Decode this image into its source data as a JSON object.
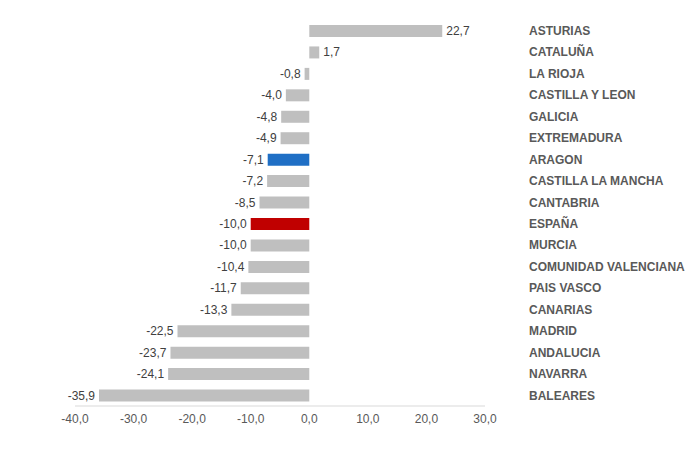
{
  "chart_data": {
    "type": "bar",
    "orientation": "horizontal",
    "categories": [
      "ASTURIAS",
      "CATALUÑA",
      "LA RIOJA",
      "CASTILLA Y LEON",
      "GALICIA",
      "EXTREMADURA",
      "ARAGON",
      "CASTILLA LA MANCHA",
      "CANTABRIA",
      "ESPAÑA",
      "MURCIA",
      "COMUNIDAD VALENCIANA",
      "PAIS VASCO",
      "CANARIAS",
      "MADRID",
      "ANDALUCIA",
      "NAVARRA",
      "BALEARES"
    ],
    "values": [
      22.7,
      1.7,
      -0.8,
      -4.0,
      -4.8,
      -4.9,
      -7.1,
      -7.2,
      -8.5,
      -10.0,
      -10.0,
      -10.4,
      -11.7,
      -13.3,
      -22.5,
      -23.7,
      -24.1,
      -35.9
    ],
    "value_labels": [
      "22,7",
      "1,7",
      "-0,8",
      "-4,0",
      "-4,8",
      "-4,9",
      "-7,1",
      "-7,2",
      "-8,5",
      "-10,0",
      "-10,0",
      "-10,4",
      "-11,7",
      "-13,3",
      "-22,5",
      "-23,7",
      "-24,1",
      "-35,9"
    ],
    "colors": [
      "#bfbfbf",
      "#bfbfbf",
      "#bfbfbf",
      "#bfbfbf",
      "#bfbfbf",
      "#bfbfbf",
      "#1f6fc5",
      "#bfbfbf",
      "#bfbfbf",
      "#c00000",
      "#bfbfbf",
      "#bfbfbf",
      "#bfbfbf",
      "#bfbfbf",
      "#bfbfbf",
      "#bfbfbf",
      "#bfbfbf",
      "#bfbfbf"
    ],
    "xlim": [
      -40,
      30
    ],
    "xticks": [
      {
        "value": -40,
        "label": "-40,0"
      },
      {
        "value": -30,
        "label": "-30,0"
      },
      {
        "value": -20,
        "label": "-20,0"
      },
      {
        "value": -10,
        "label": "-10,0"
      },
      {
        "value": 0,
        "label": "0,0"
      },
      {
        "value": 10,
        "label": "10,0"
      },
      {
        "value": 20,
        "label": "20,0"
      },
      {
        "value": 30,
        "label": "30,0"
      }
    ],
    "data_labels": true,
    "grid": false
  }
}
